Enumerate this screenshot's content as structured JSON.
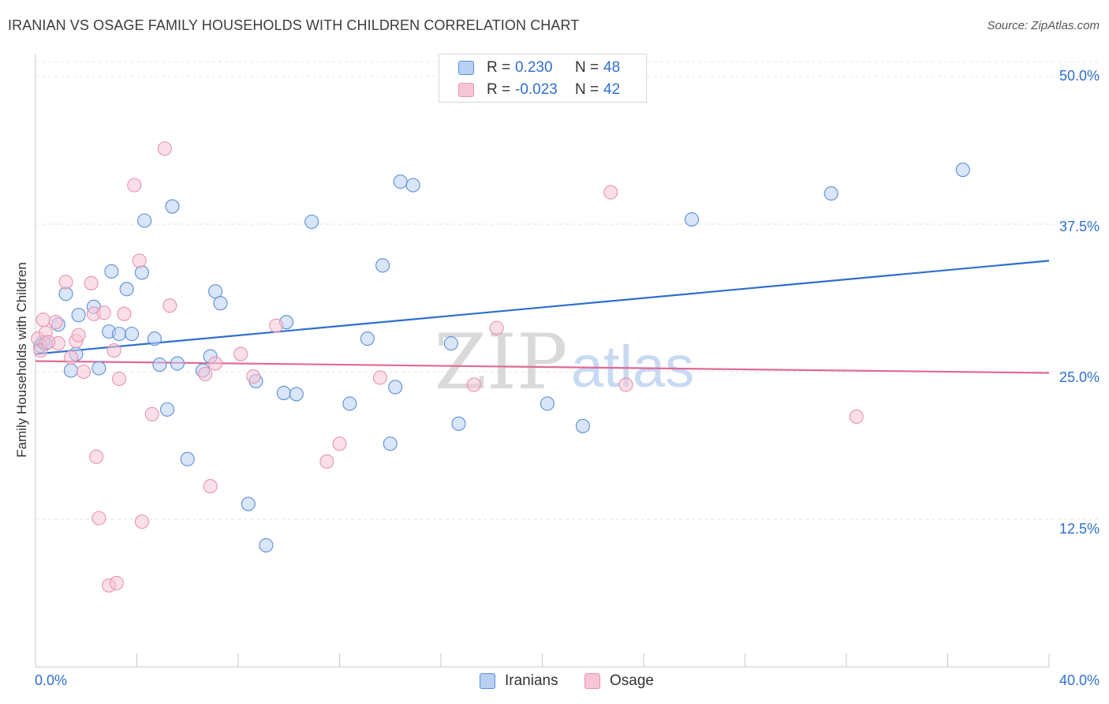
{
  "title": "IRANIAN VS OSAGE FAMILY HOUSEHOLDS WITH CHILDREN CORRELATION CHART",
  "source": "Source: ZipAtlas.com",
  "watermark": {
    "zip": "ZIP",
    "atlas": "atlas"
  },
  "legend": {
    "rows": [
      {
        "r_label": "R =",
        "r_value": "0.230",
        "n_label": "N =",
        "n_value": "48"
      },
      {
        "r_label": "R =",
        "r_value": "-0.023",
        "n_label": "N =",
        "n_value": "42"
      }
    ]
  },
  "chart_data": {
    "type": "scatter",
    "title": "IRANIAN VS OSAGE FAMILY HOUSEHOLDS WITH CHILDREN CORRELATION CHART",
    "xlabel": "",
    "ylabel": "Family Households with Children",
    "xlim": [
      0,
      40
    ],
    "ylim": [
      0,
      52
    ],
    "x_tick_labels": [
      "0.0%",
      "40.0%"
    ],
    "y_ticks": [
      12.5,
      25.0,
      37.5,
      50.0
    ],
    "y_tick_labels": [
      "12.5%",
      "25.0%",
      "37.5%",
      "50.0%"
    ],
    "grid": true,
    "legend_position": "bottom-center",
    "series": [
      {
        "name": "Iranians",
        "color": "#5b8fd6",
        "fill": "#b9d0f2",
        "trend": {
          "x": [
            0,
            40
          ],
          "y": [
            26.5,
            34.4
          ]
        },
        "points": [
          [
            0.2,
            27.2
          ],
          [
            0.3,
            27.5
          ],
          [
            0.4,
            27.4
          ],
          [
            0.9,
            29.0
          ],
          [
            1.2,
            31.6
          ],
          [
            1.4,
            25.1
          ],
          [
            1.6,
            26.5
          ],
          [
            1.7,
            29.8
          ],
          [
            2.3,
            30.5
          ],
          [
            2.5,
            25.3
          ],
          [
            2.9,
            28.4
          ],
          [
            3.0,
            33.5
          ],
          [
            3.3,
            28.2
          ],
          [
            3.6,
            32.0
          ],
          [
            3.8,
            28.2
          ],
          [
            4.2,
            33.4
          ],
          [
            4.3,
            37.8
          ],
          [
            4.7,
            27.8
          ],
          [
            4.9,
            25.6
          ],
          [
            5.2,
            21.8
          ],
          [
            5.4,
            39.0
          ],
          [
            5.6,
            25.7
          ],
          [
            6.0,
            17.6
          ],
          [
            6.6,
            25.1
          ],
          [
            6.9,
            26.3
          ],
          [
            7.1,
            31.8
          ],
          [
            7.3,
            30.8
          ],
          [
            8.4,
            13.8
          ],
          [
            8.7,
            24.2
          ],
          [
            9.1,
            10.3
          ],
          [
            9.8,
            23.2
          ],
          [
            9.9,
            29.2
          ],
          [
            10.3,
            23.1
          ],
          [
            10.9,
            37.7
          ],
          [
            12.4,
            22.3
          ],
          [
            13.1,
            27.8
          ],
          [
            13.7,
            34.0
          ],
          [
            14.0,
            18.9
          ],
          [
            14.2,
            23.7
          ],
          [
            14.4,
            41.1
          ],
          [
            14.9,
            40.8
          ],
          [
            16.4,
            27.4
          ],
          [
            16.7,
            20.6
          ],
          [
            20.2,
            22.3
          ],
          [
            21.6,
            20.4
          ],
          [
            25.9,
            37.9
          ],
          [
            31.4,
            40.1
          ],
          [
            36.6,
            42.1
          ]
        ]
      },
      {
        "name": "Osage",
        "color": "#e593b0",
        "fill": "#f7c5d6",
        "trend": {
          "x": [
            0,
            40
          ],
          "y": [
            25.9,
            24.9
          ]
        },
        "points": [
          [
            0.1,
            27.8
          ],
          [
            0.2,
            26.8
          ],
          [
            0.3,
            29.4
          ],
          [
            0.4,
            28.3
          ],
          [
            0.8,
            29.2
          ],
          [
            0.9,
            27.4
          ],
          [
            1.2,
            32.6
          ],
          [
            1.4,
            26.2
          ],
          [
            1.6,
            27.6
          ],
          [
            1.7,
            28.1
          ],
          [
            1.9,
            25.0
          ],
          [
            2.2,
            32.5
          ],
          [
            2.3,
            29.9
          ],
          [
            2.4,
            17.8
          ],
          [
            2.5,
            12.6
          ],
          [
            2.7,
            30.0
          ],
          [
            2.9,
            6.9
          ],
          [
            3.1,
            26.8
          ],
          [
            3.2,
            7.1
          ],
          [
            3.3,
            24.4
          ],
          [
            3.5,
            29.9
          ],
          [
            3.9,
            40.8
          ],
          [
            4.1,
            34.4
          ],
          [
            4.2,
            12.3
          ],
          [
            4.6,
            21.4
          ],
          [
            5.1,
            43.9
          ],
          [
            5.3,
            30.6
          ],
          [
            6.7,
            24.8
          ],
          [
            6.9,
            15.3
          ],
          [
            7.1,
            25.7
          ],
          [
            8.1,
            26.5
          ],
          [
            8.6,
            24.6
          ],
          [
            9.5,
            28.9
          ],
          [
            11.5,
            17.4
          ],
          [
            12.0,
            18.9
          ],
          [
            13.6,
            24.5
          ],
          [
            17.3,
            23.9
          ],
          [
            18.2,
            28.7
          ],
          [
            22.7,
            40.2
          ],
          [
            23.3,
            23.9
          ],
          [
            32.4,
            21.2
          ],
          [
            0.5,
            27.5
          ]
        ]
      }
    ]
  }
}
